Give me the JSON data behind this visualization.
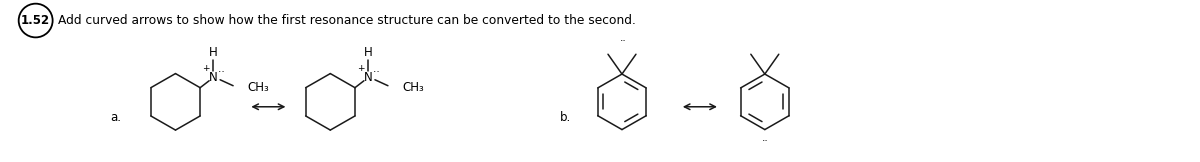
{
  "title_number": "1.52",
  "title_text": "Add curved arrows to show how the first resonance structure can be converted to the second.",
  "background_color": "#ffffff",
  "label_a": "a.",
  "label_b": "b.",
  "figsize": [
    12.0,
    1.62
  ],
  "dpi": 100,
  "line_color": "#1a1a1a",
  "circle_lw": 1.3,
  "struct_lw": 1.1
}
